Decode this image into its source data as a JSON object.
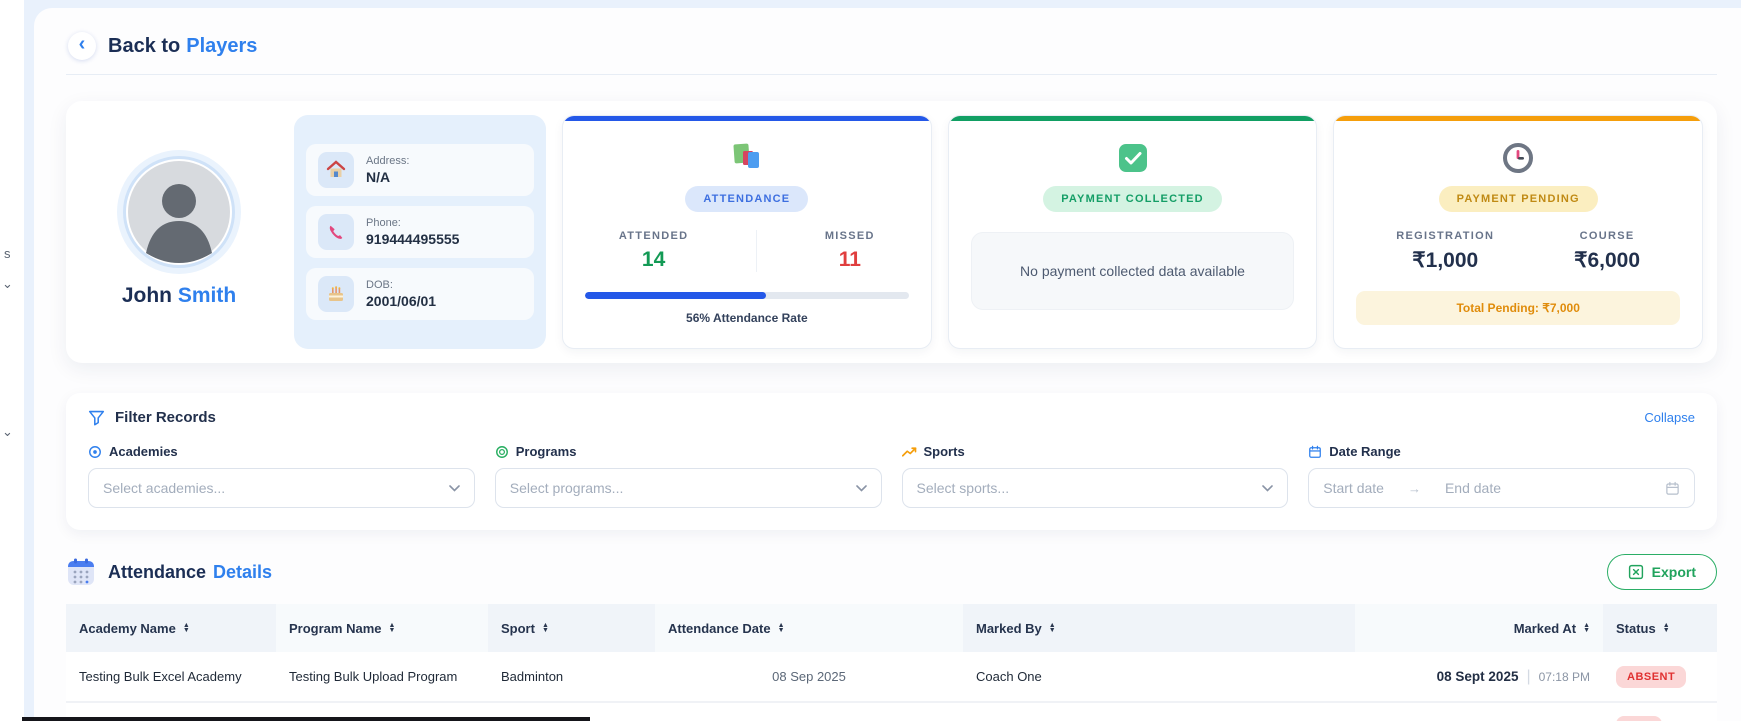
{
  "sidebar": {
    "fragments": {
      "f1": "s",
      "f2": "⌄",
      "f3": "⌄"
    }
  },
  "header": {
    "back_icon": "‹",
    "back_prefix": "Back to",
    "back_target": "Players"
  },
  "player": {
    "first_name": "John",
    "last_name": "Smith",
    "info": [
      {
        "label": "Address:",
        "value": "N/A"
      },
      {
        "label": "Phone:",
        "value": "919444495555"
      },
      {
        "label": "DOB:",
        "value": "2001/06/01"
      }
    ]
  },
  "attendance_card": {
    "badge": "ATTENDANCE",
    "attended_label": "ATTENDED",
    "attended_value": "14",
    "missed_label": "MISSED",
    "missed_value": "11",
    "rate_pct": 56,
    "rate_text": "56% Attendance Rate",
    "accent_color": "#2458e8"
  },
  "payment_collected_card": {
    "badge": "PAYMENT COLLECTED",
    "empty_text": "No payment collected data available",
    "accent_color": "#119f63"
  },
  "payment_pending_card": {
    "badge": "PAYMENT PENDING",
    "registration_label": "REGISTRATION",
    "registration_value": "₹1,000",
    "course_label": "COURSE",
    "course_value": "₹6,000",
    "total_pending_text": "Total Pending: ₹7,000",
    "accent_color": "#f59e0b"
  },
  "filters": {
    "title": "Filter Records",
    "collapse_label": "Collapse",
    "academies": {
      "label": "Academies",
      "placeholder": "Select academies..."
    },
    "programs": {
      "label": "Programs",
      "placeholder": "Select programs..."
    },
    "sports": {
      "label": "Sports",
      "placeholder": "Select sports..."
    },
    "date_range": {
      "label": "Date Range",
      "start_placeholder": "Start date",
      "end_placeholder": "End date",
      "arrow": "→"
    }
  },
  "attendance_details": {
    "title_primary": "Attendance",
    "title_secondary": "Details",
    "export_label": "Export"
  },
  "table": {
    "columns": [
      "Academy Name",
      "Program Name",
      "Sport",
      "Attendance Date",
      "Marked By",
      "Marked At",
      "Status"
    ],
    "rows": [
      {
        "academy": "Testing Bulk Excel Academy",
        "program": "Testing Bulk Upload Program",
        "sport": "Badminton",
        "attendance_date": "08 Sep 2025",
        "marked_by": "Coach One",
        "marked_date": "08 Sept 2025",
        "marked_time": "07:18 PM",
        "status": "ABSENT"
      }
    ]
  }
}
